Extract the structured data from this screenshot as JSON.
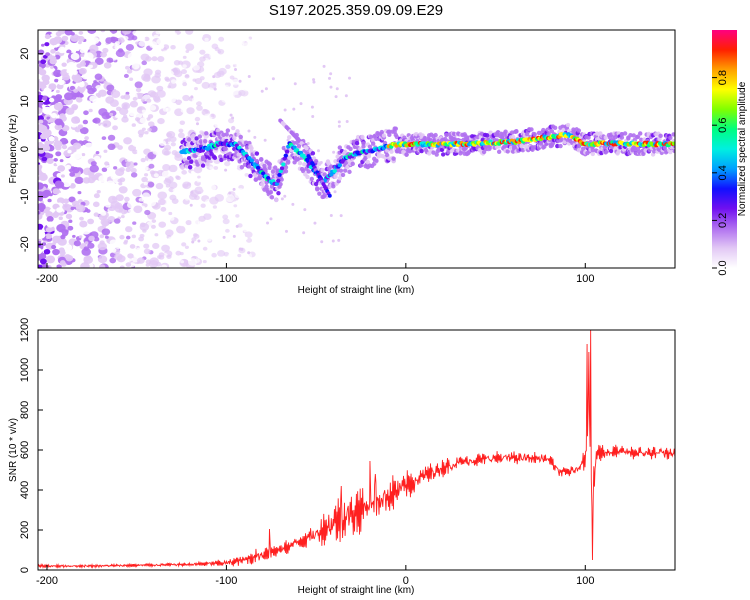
{
  "title": "S197.2025.359.09.09.E29",
  "chart_data": [
    {
      "type": "heatmap",
      "name": "spectrogram",
      "xlabel": "Height of straight line (km)",
      "ylabel": "Frequency (Hz)",
      "xlim": [
        -205,
        150
      ],
      "ylim": [
        -25,
        25
      ],
      "x_ticks": [
        -200,
        -100,
        0,
        100
      ],
      "x_tick_labels": [
        "-200",
        "-100",
        "0",
        "100"
      ],
      "y_ticks": [
        -20,
        -10,
        0,
        10,
        20
      ],
      "y_tick_labels": [
        "-20",
        "-10",
        "0",
        "10",
        "20"
      ],
      "colorbar": {
        "label": "Normalized spectral amplitude",
        "range": [
          0,
          1
        ],
        "ticks": [
          0,
          0.2,
          0.4,
          0.6,
          0.8
        ],
        "tick_labels": [
          "0.0",
          "0.2",
          "0.4",
          "0.6",
          "0.8"
        ],
        "colors": [
          "#ffffff",
          "#e2c8f5",
          "#b070f0",
          "#7010f0",
          "#1010ff",
          "#00a0ff",
          "#00f0e0",
          "#00ff80",
          "#80ff00",
          "#ffff00",
          "#ffa000",
          "#ff2000",
          "#ff0080"
        ]
      },
      "ridge": {
        "description": "dominant frequency ridge vs height",
        "x": [
          -125,
          -115,
          -105,
          -95,
          -85,
          -78,
          -72,
          -65,
          -58,
          -52,
          -46,
          -40,
          -34,
          -28,
          -22,
          -16,
          -10,
          -5,
          0,
          20,
          40,
          60,
          80,
          90,
          100,
          110,
          150
        ],
        "y": [
          -0.5,
          -0.3,
          1,
          1,
          -3,
          -6,
          -7.5,
          1,
          -1,
          -4,
          -7,
          -4.5,
          -2,
          -1,
          -0.5,
          0,
          0.5,
          1,
          1,
          1,
          1.2,
          1.5,
          2.5,
          3,
          1,
          1.2,
          1
        ]
      }
    },
    {
      "type": "line",
      "name": "snr",
      "xlabel": "Height of straight line (km)",
      "ylabel": "SNR (10 * v/v)",
      "xlim": [
        -205,
        150
      ],
      "ylim": [
        0,
        1200
      ],
      "x_ticks": [
        -200,
        -100,
        0,
        100
      ],
      "x_tick_labels": [
        "-200",
        "-100",
        "0",
        "100"
      ],
      "y_ticks": [
        0,
        200,
        400,
        600,
        800,
        1000,
        1200
      ],
      "y_tick_labels": [
        "0",
        "200",
        "400",
        "600",
        "800",
        "1000",
        "1200"
      ],
      "color": "#ff2020",
      "series": [
        {
          "name": "SNR",
          "x": [
            -205,
            -180,
            -160,
            -140,
            -120,
            -100,
            -90,
            -80,
            -70,
            -60,
            -50,
            -40,
            -30,
            -20,
            -10,
            0,
            10,
            20,
            30,
            40,
            50,
            60,
            70,
            80,
            85,
            90,
            95,
            100,
            102,
            104,
            106,
            110,
            120,
            130,
            140,
            150
          ],
          "y": [
            20,
            20,
            22,
            25,
            28,
            35,
            50,
            80,
            100,
            140,
            180,
            240,
            280,
            330,
            370,
            420,
            470,
            510,
            540,
            550,
            560,
            560,
            560,
            555,
            490,
            490,
            500,
            560,
            900,
            300,
            580,
            590,
            590,
            585,
            585,
            580
          ],
          "noise": [
            8,
            8,
            8,
            8,
            10,
            20,
            30,
            50,
            40,
            40,
            60,
            120,
            140,
            120,
            100,
            80,
            60,
            50,
            40,
            35,
            35,
            35,
            35,
            35,
            30,
            30,
            30,
            60,
            250,
            250,
            60,
            40,
            40,
            40,
            40,
            40
          ],
          "spikes": [
            {
              "x": -76,
              "y": 205
            },
            {
              "x": -36,
              "y": 420
            },
            {
              "x": -20,
              "y": 545
            },
            {
              "x": -17,
              "y": 480
            },
            {
              "x": 101,
              "y": 1130
            },
            {
              "x": 102,
              "y": 1090
            },
            {
              "x": 103,
              "y": 1200
            },
            {
              "x": 104,
              "y": 50
            }
          ]
        }
      ]
    }
  ]
}
